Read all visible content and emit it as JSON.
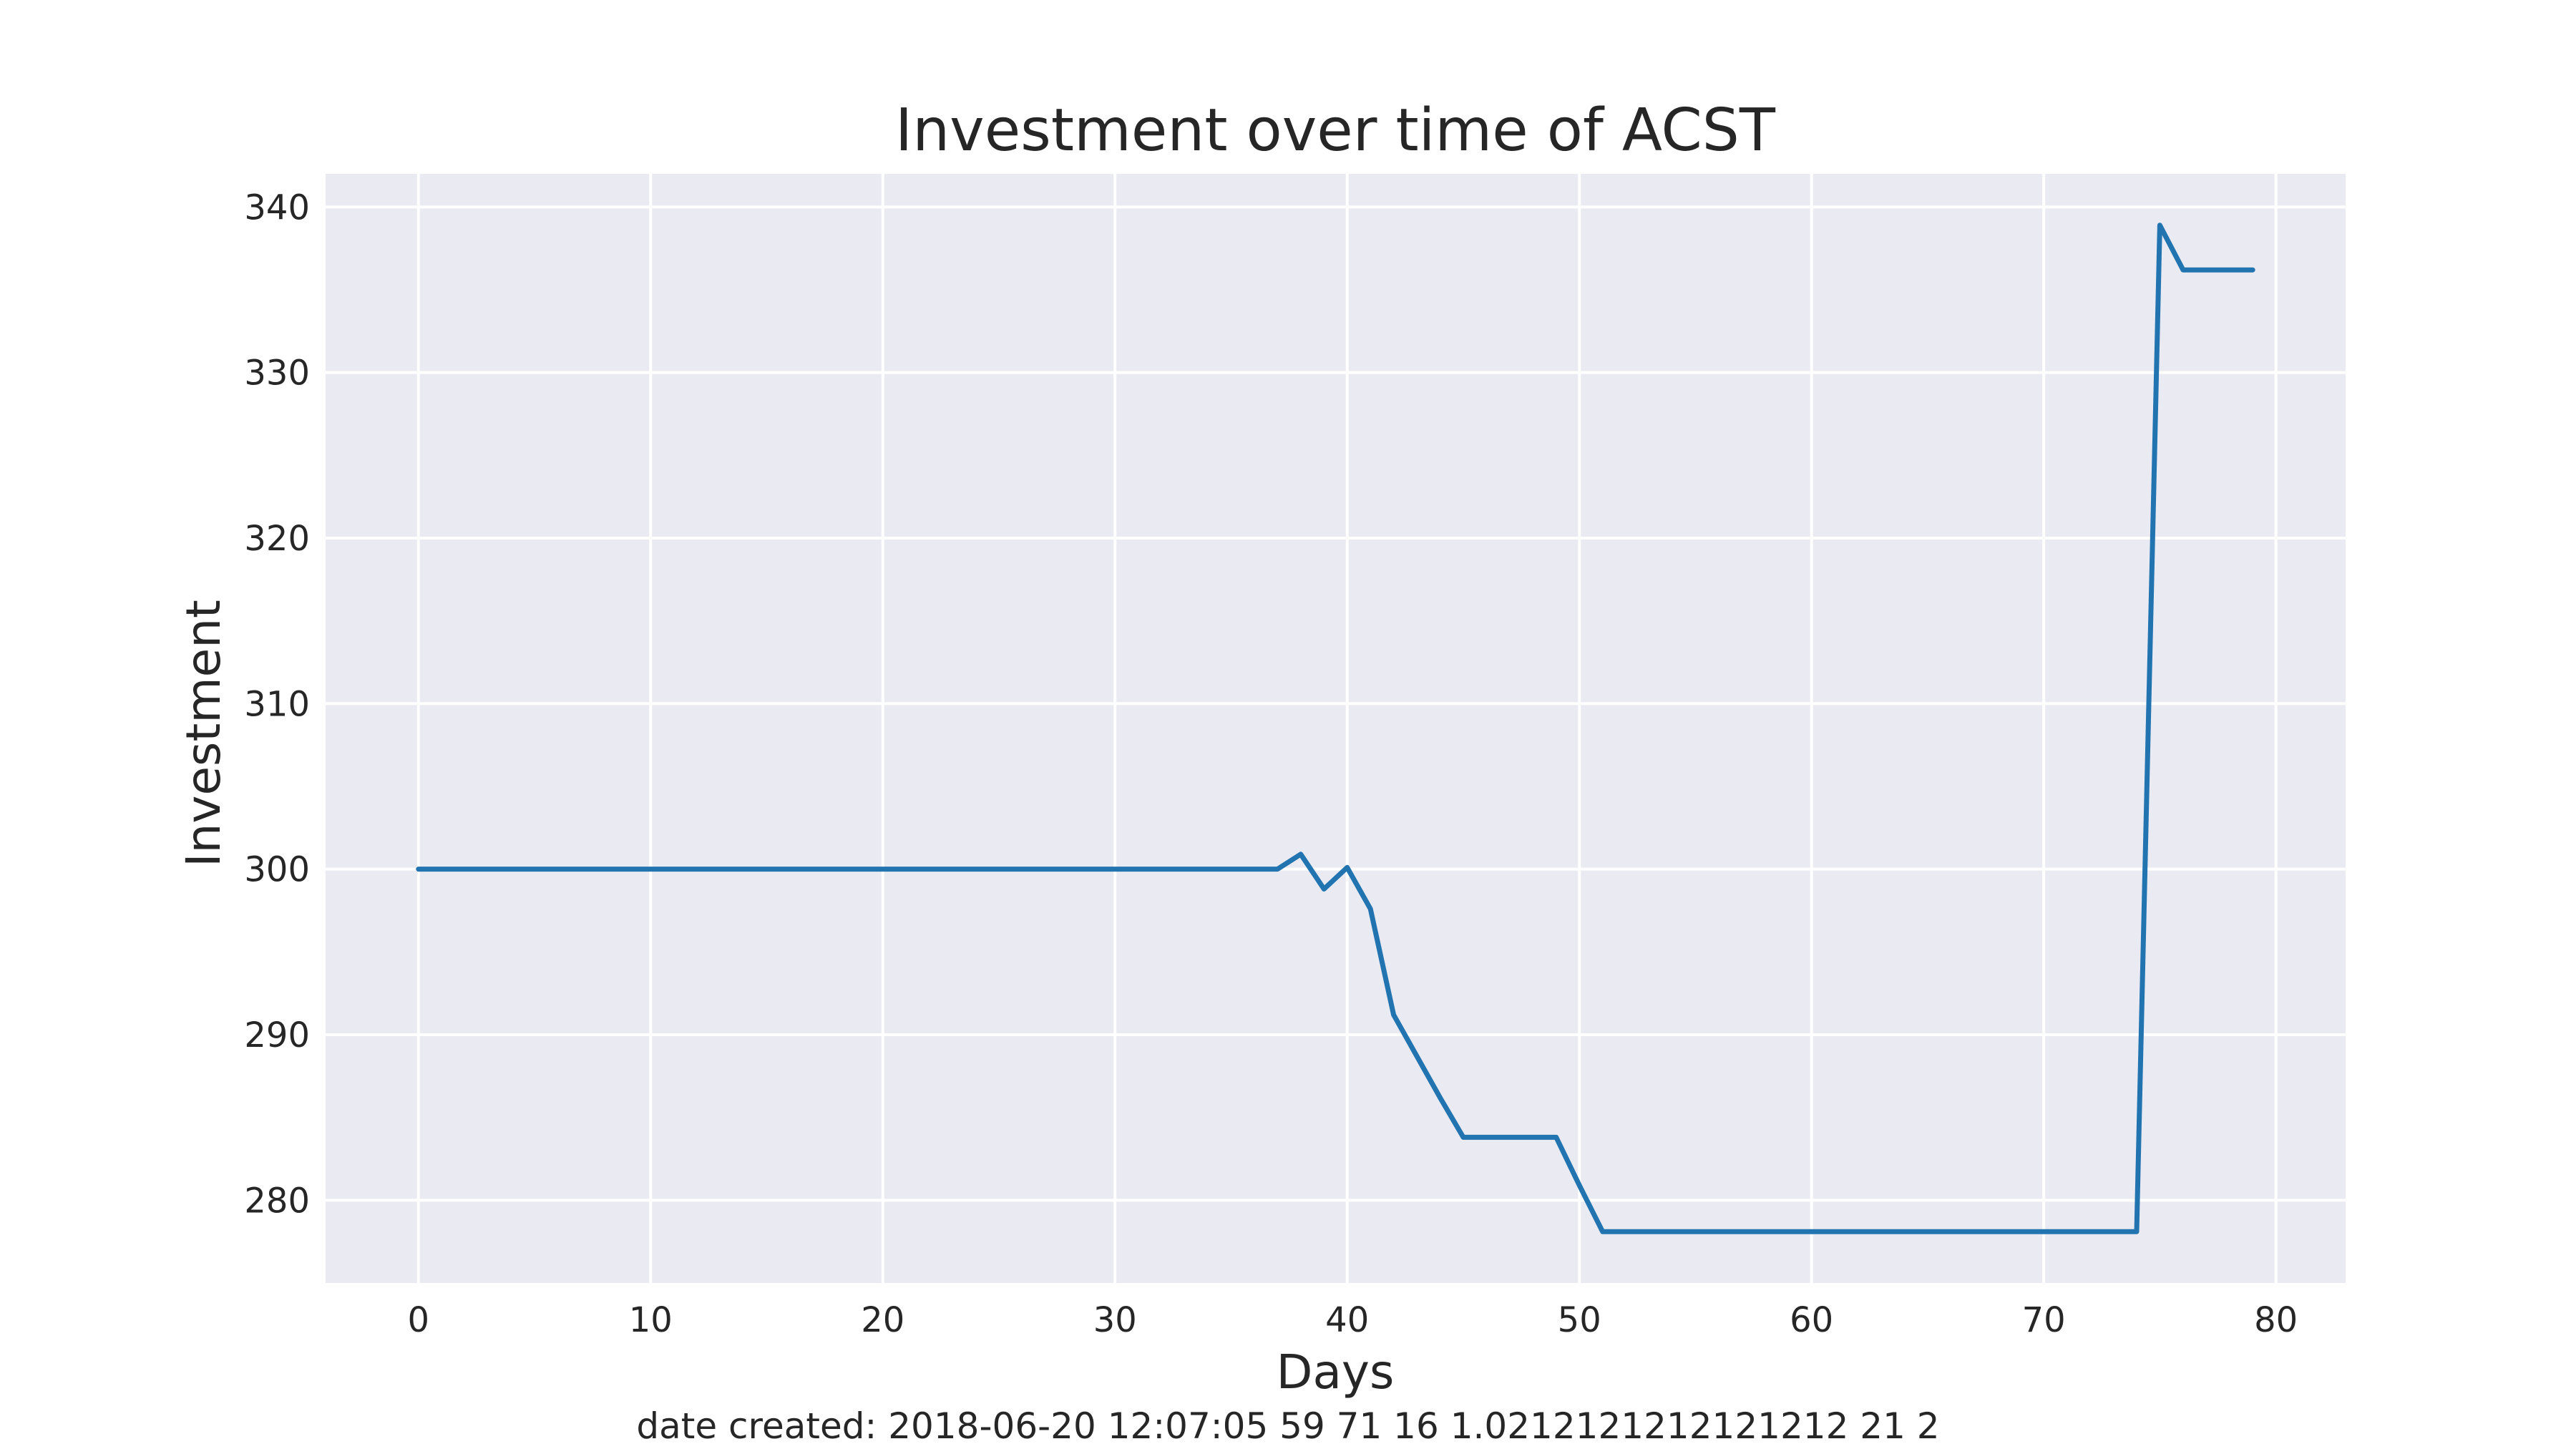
{
  "chart_data": {
    "type": "line",
    "title": "Investment over time of ACST",
    "xlabel": "Days",
    "ylabel": "Investment",
    "xlim": [
      -4,
      83
    ],
    "ylim": [
      275,
      342
    ],
    "xticks": [
      0,
      10,
      20,
      30,
      40,
      50,
      60,
      70,
      80
    ],
    "yticks": [
      280,
      290,
      300,
      310,
      320,
      330,
      340
    ],
    "grid": true,
    "legend": "none",
    "colors": {
      "background": "#eaeaf2",
      "grid": "#ffffff",
      "line": "#2274b0",
      "text": "#262626"
    },
    "series": [
      {
        "x": [
          0,
          1,
          2,
          3,
          4,
          5,
          6,
          7,
          8,
          9,
          10,
          11,
          12,
          13,
          14,
          15,
          16,
          17,
          18,
          19,
          20,
          21,
          22,
          23,
          24,
          25,
          26,
          27,
          28,
          29,
          30,
          31,
          32,
          33,
          34,
          35,
          36,
          37,
          38,
          39,
          40,
          41,
          42,
          43,
          44,
          45,
          46,
          47,
          48,
          49,
          50,
          51,
          52,
          53,
          54,
          55,
          56,
          57,
          58,
          59,
          60,
          61,
          62,
          63,
          64,
          65,
          66,
          67,
          68,
          69,
          70,
          71,
          72,
          73,
          74,
          75,
          76,
          77,
          78,
          79
        ],
        "values": [
          300,
          300,
          300,
          300,
          300,
          300,
          300,
          300,
          300,
          300,
          300,
          300,
          300,
          300,
          300,
          300,
          300,
          300,
          300,
          300,
          300,
          300,
          300,
          300,
          300,
          300,
          300,
          300,
          300,
          300,
          300,
          300,
          300,
          300,
          300,
          300,
          300,
          300,
          300.9,
          298.8,
          300.1,
          297.6,
          291.2,
          288.7,
          286.2,
          283.8,
          283.8,
          283.8,
          283.8,
          283.8,
          280.9,
          278.1,
          278.1,
          278.1,
          278.1,
          278.1,
          278.1,
          278.1,
          278.1,
          278.1,
          278.1,
          278.1,
          278.1,
          278.1,
          278.1,
          278.1,
          278.1,
          278.1,
          278.1,
          278.1,
          278.1,
          278.1,
          278.1,
          278.1,
          278.1,
          338.9,
          336.2,
          336.2,
          336.2,
          336.2
        ]
      }
    ]
  },
  "caption": "date created: 2018-06-20 12:07:05 59 71 16 1.0212121212121212 21 2"
}
